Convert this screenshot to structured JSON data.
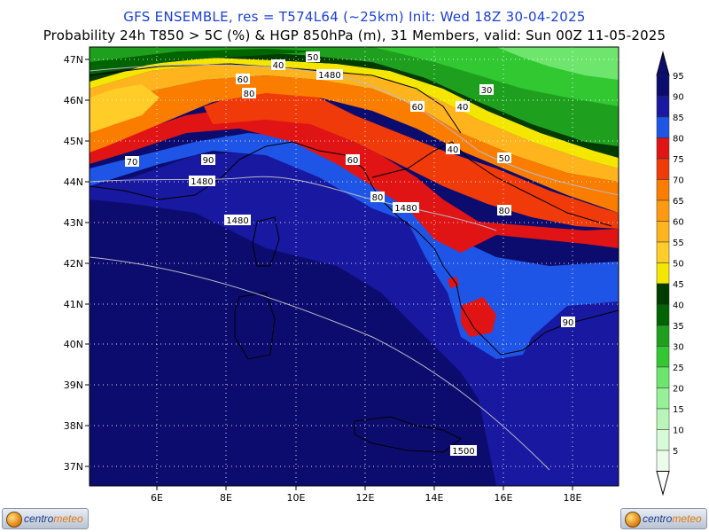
{
  "header": {
    "line1": "GFS ENSEMBLE, res = T574L64 (~25km)    Init: Wed 18Z 30-04-2025",
    "line2": "Probability 24h T850 > 5C (%) & HGP 850hPa (m), 31 Members, valid: Sun 00Z 11-05-2025"
  },
  "axes": {
    "lat_labels": [
      "47N",
      "46N",
      "45N",
      "44N",
      "43N",
      "42N",
      "41N",
      "40N",
      "39N",
      "38N",
      "37N"
    ],
    "lon_labels": [
      "6E",
      "8E",
      "10E",
      "12E",
      "14E",
      "16E",
      "18E"
    ]
  },
  "colorbar": {
    "levels": [
      {
        "label": "95",
        "color": "#0c0c6e"
      },
      {
        "label": "90",
        "color": "#1818a0"
      },
      {
        "label": "85",
        "color": "#1e55e6"
      },
      {
        "label": "80",
        "color": "#e01414"
      },
      {
        "label": "75",
        "color": "#f03a0a"
      },
      {
        "label": "70",
        "color": "#fa7d00"
      },
      {
        "label": "65",
        "color": "#ff9a10"
      },
      {
        "label": "60",
        "color": "#ffb41e"
      },
      {
        "label": "55",
        "color": "#ffcc28"
      },
      {
        "label": "50",
        "color": "#f5e600"
      },
      {
        "label": "45",
        "color": "#003c00"
      },
      {
        "label": "40",
        "color": "#006400"
      },
      {
        "label": "35",
        "color": "#1ea01e"
      },
      {
        "label": "30",
        "color": "#32c832"
      },
      {
        "label": "25",
        "color": "#6ee66e"
      },
      {
        "label": "20",
        "color": "#96f096"
      },
      {
        "label": "15",
        "color": "#b9f5b9"
      },
      {
        "label": "10",
        "color": "#d7fad7"
      },
      {
        "label": "5",
        "color": "#ebfceb"
      }
    ]
  },
  "map_labels": {
    "prob": [
      "40",
      "50",
      "60",
      "80",
      "70",
      "90",
      "60",
      "60",
      "40",
      "30",
      "40",
      "50",
      "80",
      "80",
      "90",
      "60"
    ],
    "hgp": [
      "1480",
      "1480",
      "1480",
      "1480",
      "1500"
    ]
  },
  "logos": {
    "left": {
      "part1": "centro",
      "part2": "meteo"
    },
    "right": {
      "part1": "centro",
      "part2": "meteo"
    }
  }
}
